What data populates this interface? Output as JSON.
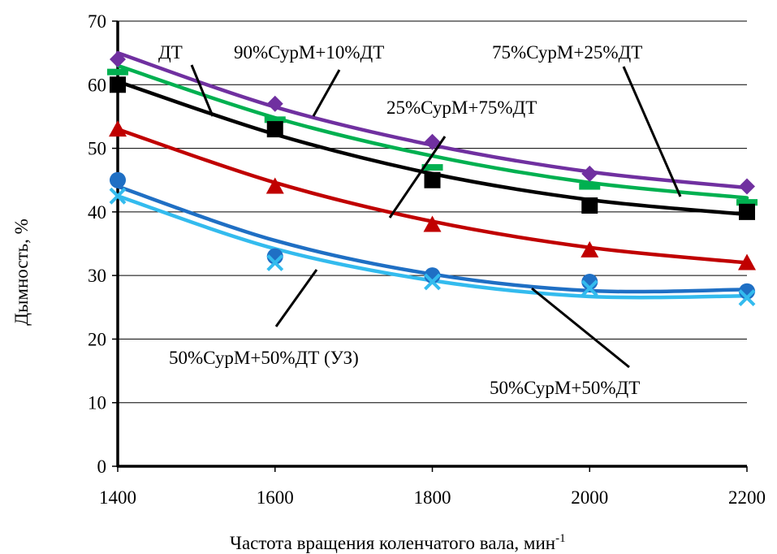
{
  "chart_data": {
    "type": "line",
    "title": "",
    "xlabel": "Частота вращения коленчатого вала, мин",
    "xlabel_sup": "-1",
    "ylabel": "Дымность, %",
    "xlim": [
      1400,
      2200
    ],
    "ylim": [
      0,
      70
    ],
    "x_ticks": [
      "1400",
      "1600",
      "1800",
      "2000",
      "2200"
    ],
    "y_ticks": [
      "0",
      "10",
      "20",
      "30",
      "40",
      "50",
      "60",
      "70"
    ],
    "grid": "horizontal",
    "legend": "none",
    "x": [
      1400,
      1600,
      1800,
      2000,
      2200
    ],
    "series": [
      {
        "key": "s90",
        "color": "#7030A0",
        "marker": "diamond",
        "values": [
          64,
          57,
          51,
          46,
          44
        ],
        "fit": [
          65,
          56.5,
          50.5,
          46.3,
          43.8
        ]
      },
      {
        "key": "s75",
        "color": "#00B050",
        "marker": "dash",
        "values": [
          62,
          54.5,
          47,
          44,
          41.5
        ],
        "fit": [
          63,
          54.8,
          48.8,
          44.6,
          42.2
        ]
      },
      {
        "key": "sDT",
        "color": "#000000",
        "marker": "square",
        "values": [
          60,
          53,
          45,
          41,
          40
        ],
        "fit": [
          60.5,
          52.2,
          46.0,
          41.9,
          39.6
        ]
      },
      {
        "key": "s25",
        "color": "#C00000",
        "marker": "triangle",
        "values": [
          53,
          44,
          38,
          34,
          32
        ],
        "fit": [
          53,
          44.6,
          38.5,
          34.4,
          32.0
        ]
      },
      {
        "key": "s50",
        "color": "#1F6FC4",
        "marker": "circle",
        "values": [
          45,
          33,
          30,
          29,
          27.5
        ],
        "fit": [
          44,
          35.5,
          30.2,
          27.6,
          27.8
        ]
      },
      {
        "key": "s50uz",
        "color": "#33BBEE",
        "marker": "x",
        "values": [
          42.5,
          32,
          29,
          28,
          26.5
        ],
        "fit": [
          42.5,
          34.2,
          29.2,
          26.7,
          26.8
        ]
      }
    ],
    "annotations": [
      {
        "text": "ДТ",
        "series": "sDT"
      },
      {
        "text": "90%СурМ+10%ДТ",
        "series": "s90"
      },
      {
        "text": "75%СурМ+25%ДТ",
        "series": "s75"
      },
      {
        "text": "25%СурМ+75%ДТ",
        "series": "s25"
      },
      {
        "text": "50%СурМ+50%ДТ (УЗ)",
        "series": "s50uz"
      },
      {
        "text": "50%СурМ+50%ДТ",
        "series": "s50"
      }
    ]
  }
}
